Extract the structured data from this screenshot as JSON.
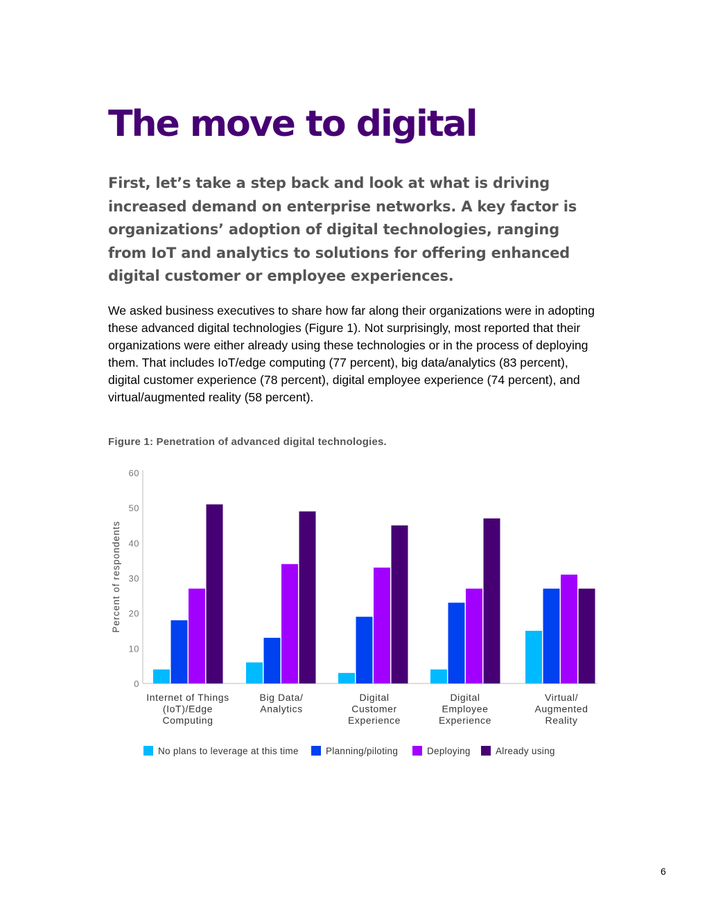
{
  "title": "The move to digital",
  "lead": "First, let’s take a step back and look at what is driving increased demand on enterprise networks. A key factor is organizations’ adoption of digital technologies, ranging from IoT and analytics to solutions for offering enhanced digital customer or employee experiences.",
  "body": "We asked business executives to share how far along their organizations were in adopting these advanced digital technologies (Figure 1). Not surprisingly, most reported that their organizations were either already using these technologies or in the process of deploying them. That includes IoT/edge computing (77 percent), big data/analytics (83 percent), digital customer experience (78 percent), digital employee experience (74 percent), and virtual/augmented reality (58 percent).",
  "figure_caption": "Figure 1: Penetration of advanced digital technologies.",
  "page_number": "6",
  "chart_data": {
    "type": "bar",
    "title": "",
    "ylabel": "Percent of respondents",
    "xlabel": "",
    "ylim": [
      0,
      60
    ],
    "yticks": [
      0,
      10,
      20,
      30,
      40,
      50,
      60
    ],
    "grid": false,
    "legend_position": "bottom",
    "categories": [
      [
        "Internet of Things",
        "(IoT)/Edge",
        "Computing"
      ],
      [
        "Big Data/",
        "Analytics"
      ],
      [
        "Digital",
        "Customer",
        "Experience"
      ],
      [
        "Digital",
        "Employee",
        "Experience"
      ],
      [
        "Virtual/",
        "Augmented",
        "Reality"
      ]
    ],
    "series": [
      {
        "name": "No plans to leverage at this time",
        "color": "#00baff",
        "values": [
          4,
          6,
          3,
          4,
          15
        ]
      },
      {
        "name": "Planning/piloting",
        "color": "#0041f0",
        "values": [
          18,
          13,
          19,
          23,
          27
        ]
      },
      {
        "name": "Deploying",
        "color": "#a100ff",
        "values": [
          27,
          34,
          33,
          27,
          31
        ]
      },
      {
        "name": "Already using",
        "color": "#460073",
        "values": [
          51,
          49,
          45,
          47,
          27
        ]
      }
    ]
  }
}
